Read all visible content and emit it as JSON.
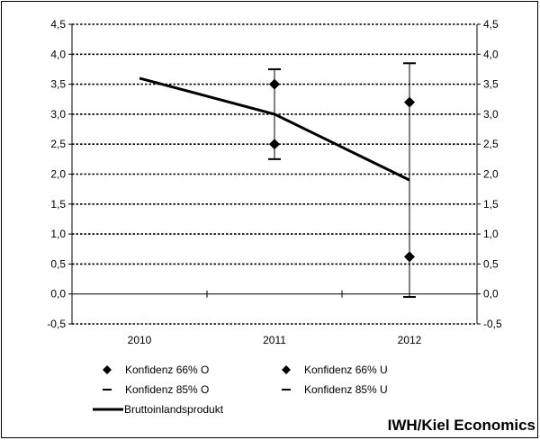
{
  "chart_data": {
    "type": "line",
    "categories": [
      "2010",
      "2011",
      "2012"
    ],
    "ylim": [
      -0.5,
      4.5
    ],
    "y_ticks": [
      "4,5",
      "4,0",
      "3,5",
      "3,0",
      "2,5",
      "2,0",
      "1,5",
      "1,0",
      "0,5",
      "0,0",
      "-0,5"
    ],
    "y_tick_values": [
      4.5,
      4.0,
      3.5,
      3.0,
      2.5,
      2.0,
      1.5,
      1.0,
      0.5,
      0.0,
      -0.5
    ],
    "grid": true,
    "legend_position": "bottom",
    "series": [
      {
        "name": "Konfidenz 66% O",
        "kind": "diamond",
        "values": [
          null,
          3.5,
          3.2
        ]
      },
      {
        "name": "Konfidenz 66% U",
        "kind": "diamond",
        "values": [
          null,
          2.5,
          0.62
        ]
      },
      {
        "name": "Konfidenz 85% O",
        "kind": "dash",
        "values": [
          null,
          3.75,
          3.85
        ]
      },
      {
        "name": "Konfidenz 85% U",
        "kind": "dash",
        "values": [
          null,
          2.25,
          -0.05
        ]
      },
      {
        "name": "Bruttoinlandsprodukt",
        "kind": "line",
        "values": [
          3.6,
          3.0,
          1.9
        ]
      }
    ]
  },
  "credit": "IWH/Kiel Economics",
  "colors": {
    "ink": "#000000",
    "background": "#ffffff"
  }
}
